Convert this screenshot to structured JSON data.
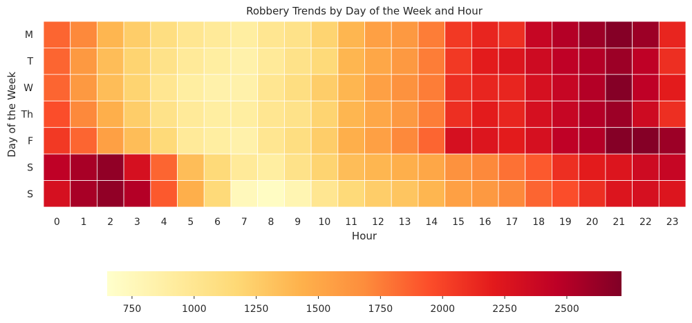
{
  "chart_data": {
    "type": "heatmap",
    "title": "Robbery Trends by Day of the Week and Hour",
    "xlabel": "Hour",
    "ylabel": "Day of the Week",
    "x_categories": [
      "0",
      "1",
      "2",
      "3",
      "4",
      "5",
      "6",
      "7",
      "8",
      "9",
      "10",
      "11",
      "12",
      "13",
      "14",
      "15",
      "16",
      "17",
      "18",
      "19",
      "20",
      "21",
      "22",
      "23"
    ],
    "y_categories": [
      "M",
      "T",
      "W",
      "Th",
      "F",
      "S",
      "S"
    ],
    "values": [
      [
        1850,
        1700,
        1400,
        1250,
        1100,
        1000,
        950,
        900,
        1000,
        1050,
        1200,
        1400,
        1550,
        1600,
        1750,
        2050,
        2150,
        2100,
        2400,
        2500,
        2600,
        2700,
        2600,
        2150
      ],
      [
        1850,
        1600,
        1350,
        1200,
        1050,
        950,
        900,
        850,
        950,
        1050,
        1150,
        1400,
        1500,
        1600,
        1750,
        2050,
        2200,
        2250,
        2350,
        2450,
        2500,
        2600,
        2450,
        2100
      ],
      [
        1850,
        1600,
        1350,
        1200,
        1000,
        900,
        850,
        850,
        1000,
        1100,
        1250,
        1400,
        1550,
        1650,
        1750,
        2100,
        2150,
        2150,
        2300,
        2400,
        2500,
        2700,
        2450,
        2200
      ],
      [
        1950,
        1700,
        1450,
        1250,
        1050,
        950,
        900,
        900,
        1000,
        1050,
        1200,
        1400,
        1500,
        1600,
        1750,
        2100,
        2200,
        2150,
        2300,
        2400,
        2500,
        2600,
        2350,
        2100
      ],
      [
        2050,
        1850,
        1550,
        1350,
        1150,
        950,
        900,
        850,
        1000,
        1100,
        1250,
        1450,
        1550,
        1700,
        1850,
        2300,
        2250,
        2200,
        2300,
        2450,
        2500,
        2700,
        2700,
        2600
      ],
      [
        2450,
        2550,
        2650,
        2300,
        1850,
        1350,
        1150,
        950,
        900,
        1050,
        1200,
        1350,
        1400,
        1450,
        1500,
        1650,
        1700,
        1800,
        1900,
        2100,
        2200,
        2250,
        2350,
        2400
      ],
      [
        2300,
        2550,
        2650,
        2500,
        1900,
        1450,
        1150,
        750,
        700,
        800,
        1000,
        1150,
        1250,
        1300,
        1400,
        1550,
        1600,
        1700,
        1850,
        1950,
        2100,
        2250,
        2300,
        2250
      ]
    ],
    "colorbar": {
      "min": 650,
      "max": 2720,
      "ticks": [
        750,
        1000,
        1250,
        1500,
        1750,
        2000,
        2250,
        2500
      ],
      "tick_labels": [
        "750",
        "1000",
        "1250",
        "1500",
        "1750",
        "2000",
        "2250",
        "2500"
      ],
      "orientation": "horizontal"
    },
    "colormap": [
      "#ffffcc",
      "#ffeda0",
      "#fed976",
      "#feb24c",
      "#fd8d3c",
      "#fc4e2a",
      "#e31a1c",
      "#bd0026",
      "#800026"
    ],
    "cell_border_color": "#ffffff"
  }
}
